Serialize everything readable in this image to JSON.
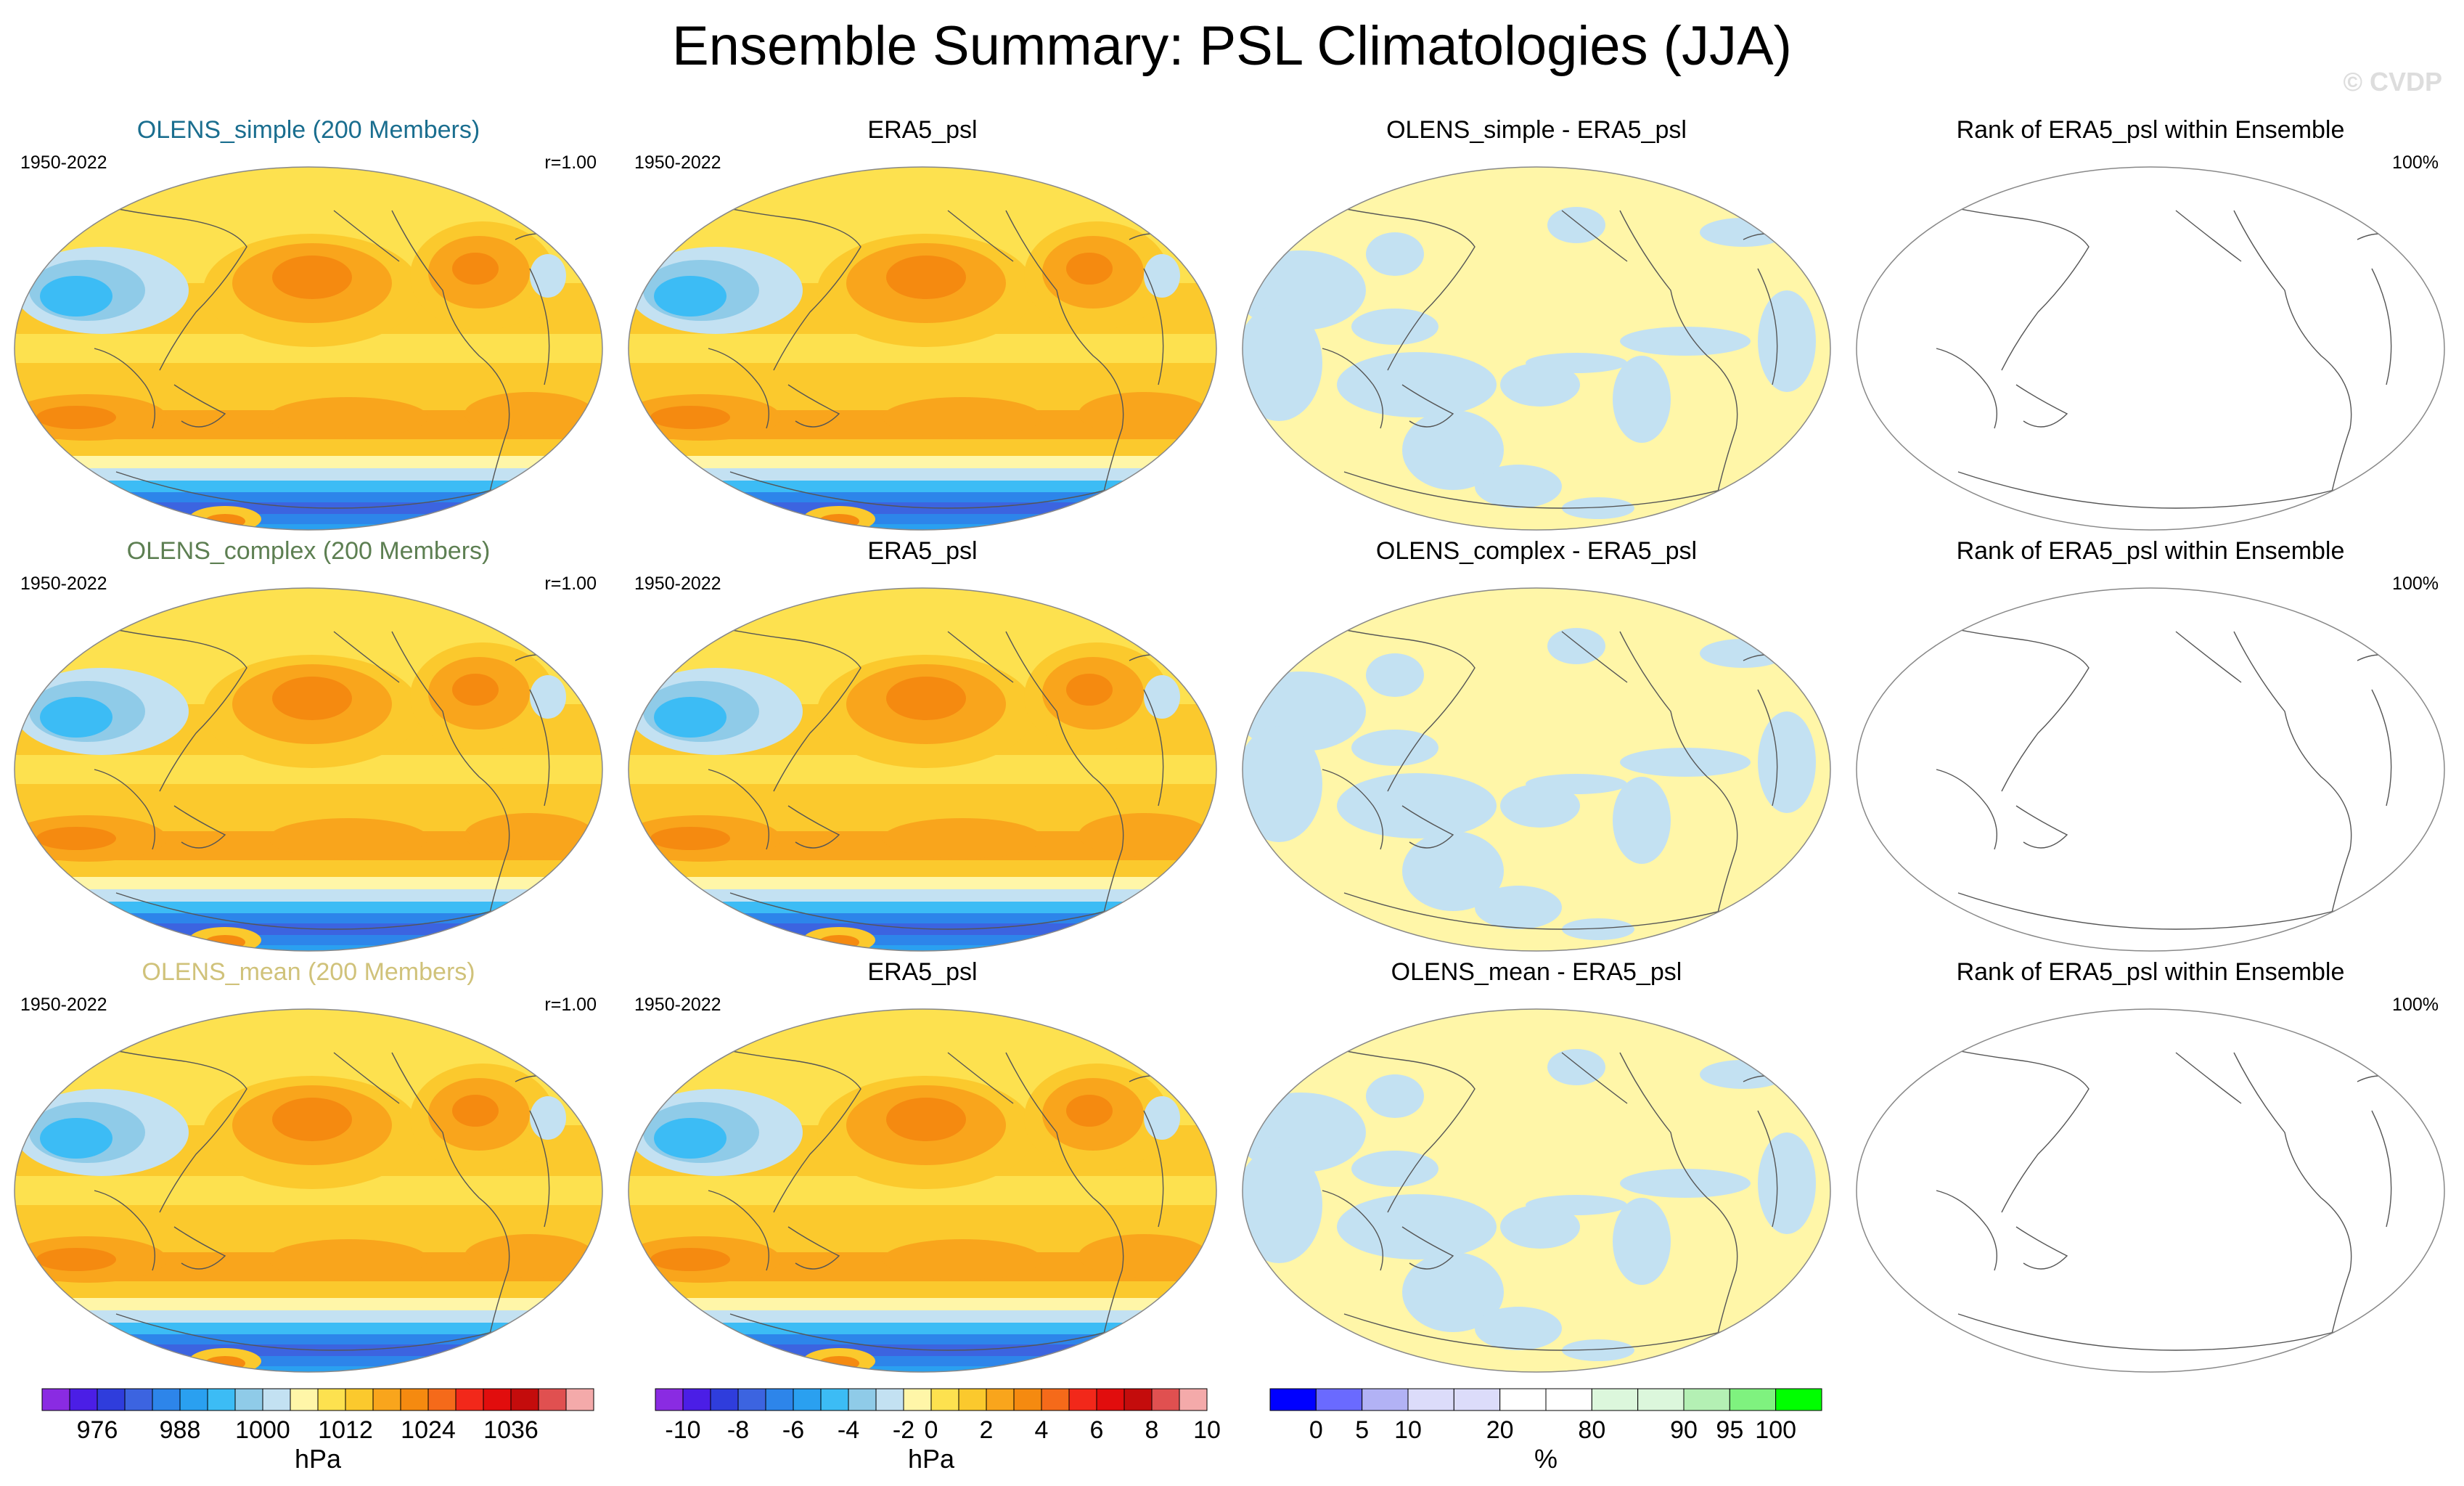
{
  "figure": {
    "title": "Ensemble Summary: PSL Climatologies (JJA)",
    "watermark": "© CVDP"
  },
  "rows": [
    {
      "ensemble": {
        "title": "OLENS_simple (200 Members)",
        "title_color": "#1a6e8f",
        "period": "1950-2022",
        "corr": "r=1.00"
      },
      "obs": {
        "title": "ERA5_psl",
        "period": "1950-2022"
      },
      "diff": {
        "title": "OLENS_simple - ERA5_psl"
      },
      "rank": {
        "title": "Rank of ERA5_psl within Ensemble",
        "pct": "100%"
      }
    },
    {
      "ensemble": {
        "title": "OLENS_complex (200 Members)",
        "title_color": "#5d7f52",
        "period": "1950-2022",
        "corr": "r=1.00"
      },
      "obs": {
        "title": "ERA5_psl",
        "period": "1950-2022"
      },
      "diff": {
        "title": "OLENS_complex - ERA5_psl"
      },
      "rank": {
        "title": "Rank of ERA5_psl within Ensemble",
        "pct": "100%"
      }
    },
    {
      "ensemble": {
        "title": "OLENS_mean (200 Members)",
        "title_color": "#d0c27a",
        "period": "1950-2022",
        "corr": "r=1.00"
      },
      "obs": {
        "title": "ERA5_psl",
        "period": "1950-2022"
      },
      "diff": {
        "title": "OLENS_mean - ERA5_psl"
      },
      "rank": {
        "title": "Rank of ERA5_psl within Ensemble",
        "pct": "100%"
      }
    }
  ],
  "chart_data": [
    {
      "type": "colorbar",
      "name": "psl_climatology",
      "unit": "hPa",
      "tick_labels": [
        "976",
        "988",
        "1000",
        "1012",
        "1024",
        "1036"
      ],
      "colors": [
        "#8a2be2",
        "#4b1ee6",
        "#2f3ddc",
        "#3c64e0",
        "#2d85ea",
        "#2aa0f0",
        "#3cbcf5",
        "#8fcbe8",
        "#c3e1f2",
        "#fff6a8",
        "#fde14f",
        "#fbc92d",
        "#f9a51c",
        "#f58a10",
        "#f56a1a",
        "#f2281a",
        "#e10d0d",
        "#c40c0c",
        "#e05050",
        "#f4aaaa"
      ],
      "tick_after_index": [
        1,
        4,
        7,
        10,
        13,
        16
      ]
    },
    {
      "type": "colorbar",
      "name": "psl_difference",
      "unit": "hPa",
      "tick_labels": [
        "-10",
        "-8",
        "-6",
        "-4",
        "-2",
        "0",
        "2",
        "4",
        "6",
        "8",
        "10"
      ],
      "colors": [
        "#8a2be2",
        "#4b1ee6",
        "#2f3ddc",
        "#3c64e0",
        "#2d85ea",
        "#2aa0f0",
        "#3cbcf5",
        "#8fcbe8",
        "#c3e1f2",
        "#fff6a8",
        "#fde14f",
        "#fbc92d",
        "#f9a51c",
        "#f58a10",
        "#f56a1a",
        "#f2281a",
        "#e10d0d",
        "#c40c0c",
        "#e05050",
        "#f4aaaa"
      ],
      "tick_after_index": [
        0,
        2,
        4,
        6,
        8,
        9,
        11,
        13,
        15,
        17,
        19
      ]
    },
    {
      "type": "colorbar",
      "name": "rank_percent",
      "unit": "%",
      "tick_labels": [
        "0",
        "5",
        "10",
        "20",
        "80",
        "90",
        "95",
        "100"
      ],
      "colors": [
        "#0000ff",
        "#6a6aff",
        "#b2b2f5",
        "#dcdcfa",
        "#dcdcfa",
        "#ffffff",
        "#ffffff",
        "#dcf7dc",
        "#dcf7dc",
        "#b4f0b4",
        "#7ff27f",
        "#00ff00"
      ],
      "tick_boundaries": [
        1,
        2,
        3,
        5,
        7,
        9,
        10,
        11
      ]
    }
  ]
}
